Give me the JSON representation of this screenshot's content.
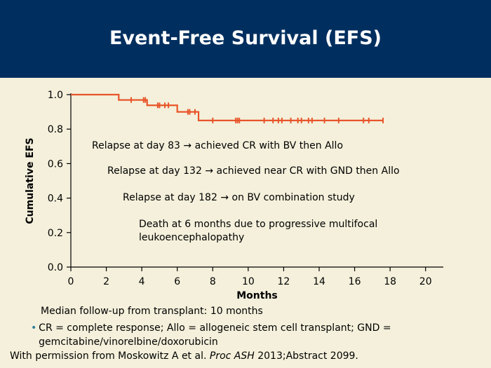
{
  "slide": {
    "title": "Event-Free Survival (EFS)",
    "footnote_median": "Median follow-up from transplant: 10 months",
    "footnote_abbrev": "CR = complete response; Allo = allogeneic stem cell transplant; GND = gemcitabine/vinorelbine/doxorubicin",
    "citation_pre": "With permission from Moskowitz A et al. ",
    "citation_journal": "Proc ASH",
    "citation_post": " 2013;Abstract 2099."
  },
  "colors": {
    "header_bg": "#002f5f",
    "background": "#f4f0db",
    "curve": "#e8552a",
    "axis": "#000000",
    "bullet": "#2e7d9a"
  },
  "chart_data": {
    "type": "line",
    "step": true,
    "title": "",
    "xlabel": "Months",
    "ylabel": "Cumulative EFS",
    "xlim": [
      0,
      21
    ],
    "ylim": [
      0,
      1
    ],
    "xticks": [
      0,
      2,
      4,
      6,
      8,
      10,
      12,
      14,
      16,
      18,
      20
    ],
    "yticks": [
      0.0,
      0.2,
      0.4,
      0.6,
      0.8,
      1.0
    ],
    "ytick_labels": [
      "0.0",
      "0.2",
      "0.4",
      "0.6",
      "0.8",
      "1.0"
    ],
    "grid": false,
    "series": [
      {
        "steps": [
          {
            "x": 0,
            "y": 1.0
          },
          {
            "x": 2.7,
            "y": 0.969
          },
          {
            "x": 4.3,
            "y": 0.938
          },
          {
            "x": 6.0,
            "y": 0.9
          },
          {
            "x": 7.2,
            "y": 0.85
          },
          {
            "x": 17.6,
            "y": 0.85
          }
        ],
        "censored": [
          {
            "x": 3.4,
            "y": 0.969
          },
          {
            "x": 4.1,
            "y": 0.969
          },
          {
            "x": 4.2,
            "y": 0.969
          },
          {
            "x": 4.9,
            "y": 0.938
          },
          {
            "x": 5.0,
            "y": 0.938
          },
          {
            "x": 5.3,
            "y": 0.938
          },
          {
            "x": 5.5,
            "y": 0.938
          },
          {
            "x": 6.6,
            "y": 0.9
          },
          {
            "x": 6.7,
            "y": 0.9
          },
          {
            "x": 7.0,
            "y": 0.9
          },
          {
            "x": 8.0,
            "y": 0.85
          },
          {
            "x": 9.3,
            "y": 0.85
          },
          {
            "x": 9.4,
            "y": 0.85
          },
          {
            "x": 9.5,
            "y": 0.85
          },
          {
            "x": 10.9,
            "y": 0.85
          },
          {
            "x": 11.4,
            "y": 0.85
          },
          {
            "x": 11.7,
            "y": 0.85
          },
          {
            "x": 11.9,
            "y": 0.85
          },
          {
            "x": 12.4,
            "y": 0.85
          },
          {
            "x": 12.8,
            "y": 0.85
          },
          {
            "x": 13.0,
            "y": 0.85
          },
          {
            "x": 13.4,
            "y": 0.85
          },
          {
            "x": 13.6,
            "y": 0.85
          },
          {
            "x": 14.3,
            "y": 0.85
          },
          {
            "x": 15.1,
            "y": 0.85
          },
          {
            "x": 16.5,
            "y": 0.85
          },
          {
            "x": 16.8,
            "y": 0.85
          },
          {
            "x": 17.6,
            "y": 0.85
          }
        ]
      }
    ],
    "annotations": [
      "Relapse at day 83 → achieved CR with BV then Allo",
      "Relapse at day 132 → achieved near CR with GND then Allo",
      "Relapse at day 182 → on BV combination study",
      "Death at 6 months due to progressive multifocal",
      "leukoencephalopathy"
    ]
  }
}
